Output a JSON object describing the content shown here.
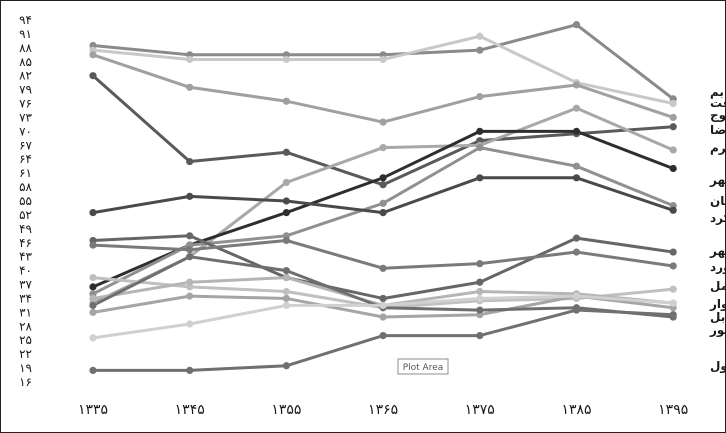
{
  "chart_data": {
    "type": "line",
    "title": "",
    "xlabel": "",
    "ylabel": "",
    "ylim": [
      16,
      94
    ],
    "y_ticks": [
      "۹۴",
      "۹۱",
      "۸۸",
      "۸۵",
      "۸۲",
      "۷۹",
      "۷۶",
      "۷۳",
      "۷۰",
      "۶۷",
      "۶۴",
      "۶۱",
      "۵۸",
      "۵۵",
      "۵۲",
      "۴۹",
      "۴۶",
      "۴۳",
      "۴۰",
      "۳۷",
      "۳۴",
      "۳۱",
      "۲۸",
      "۲۵",
      "۲۲",
      "۱۹",
      "۱۶"
    ],
    "y_tick_values": [
      94,
      91,
      88,
      85,
      82,
      79,
      76,
      73,
      70,
      67,
      64,
      61,
      58,
      55,
      52,
      49,
      46,
      43,
      40,
      37,
      34,
      31,
      28,
      25,
      22,
      19,
      16
    ],
    "categories": [
      "۱۳۳۵",
      "۱۳۴۵",
      "۱۳۵۵",
      "۱۳۶۵",
      "۱۳۷۵",
      "۱۳۸۵",
      "۱۳۹۵"
    ],
    "grid": false,
    "tooltip": "Plot Area",
    "series": [
      {
        "name": "بم",
        "color": "#8a8a8a",
        "values": [
          88.5,
          86.5,
          86.5,
          86.5,
          87.5,
          93,
          77
        ]
      },
      {
        "name": "جیرفت",
        "color": "#c8c8c8",
        "values": [
          87.5,
          85.5,
          85.5,
          85.5,
          90.5,
          80.5,
          76
        ]
      },
      {
        "name": "یاسوج",
        "color": "#a0a0a0",
        "values": [
          86.5,
          79.5,
          76.5,
          72,
          77.5,
          80,
          73
        ]
      },
      {
        "name": "شهرضا",
        "color": "#5a5a5a",
        "values": [
          82,
          63.5,
          65.5,
          58.5,
          68,
          69.5,
          71
        ]
      },
      {
        "name": "جهرم",
        "color": "#a8a8a8",
        "values": [
          33,
          43,
          59,
          66.5,
          67,
          75,
          66
        ]
      },
      {
        "name": "بندرماهشهر",
        "color": "#2e2e2e",
        "values": [
          36.5,
          45.5,
          52.5,
          60,
          70,
          70,
          62
        ]
      },
      {
        "name": "سمنان",
        "color": "#909090",
        "values": [
          35,
          45.5,
          47.5,
          54.5,
          66.5,
          62.5,
          54
        ]
      },
      {
        "name": "شهرکرد",
        "color": "#4a4a4a",
        "values": [
          52.5,
          56,
          55,
          52.5,
          60,
          60,
          53
        ]
      },
      {
        "name": "بوشهر",
        "color": "#666666",
        "values": [
          46.5,
          47.5,
          38.5,
          34,
          37.5,
          47,
          44
        ]
      },
      {
        "name": "بجنورد",
        "color": "#7a7a7a",
        "values": [
          45.5,
          44.5,
          46.5,
          40.5,
          41.5,
          44,
          41
        ]
      },
      {
        "name": "آمل",
        "color": "#c0c0c0",
        "values": [
          38.5,
          36.5,
          35.5,
          32,
          33.5,
          34,
          36
        ]
      },
      {
        "name": "سبزوار",
        "color": "#b5b5b5",
        "values": [
          34,
          37.5,
          38.5,
          32.5,
          35.5,
          35,
          33
        ]
      },
      {
        "name": "بابل",
        "color": "#a5a5a5",
        "values": [
          31,
          34.5,
          34,
          30,
          30.5,
          34.5,
          32
        ]
      },
      {
        "name": "نیشابور",
        "color": "#6e6e6e",
        "values": [
          32.5,
          43,
          40,
          32,
          31.5,
          32,
          30
        ]
      },
      {
        "name": "دزفول",
        "color": "#707070",
        "values": [
          18.5,
          18.5,
          19.5,
          26,
          26,
          31.5,
          30.5
        ]
      },
      {
        "name": "",
        "color": "#d0d0d0",
        "values": [
          25.5,
          28.5,
          32.5,
          32.5,
          34,
          34.5,
          33
        ]
      }
    ],
    "labels_order": [
      "بم",
      "جیرفت",
      "یاسوج",
      "شهرضا",
      "جهرم",
      "بندرماهشهر",
      "سمنان",
      "شهرکرد",
      "بوشهر",
      "بجنورد",
      "آمل",
      "سبزوار",
      "بابل",
      "نیشابور",
      "دزفول"
    ]
  }
}
